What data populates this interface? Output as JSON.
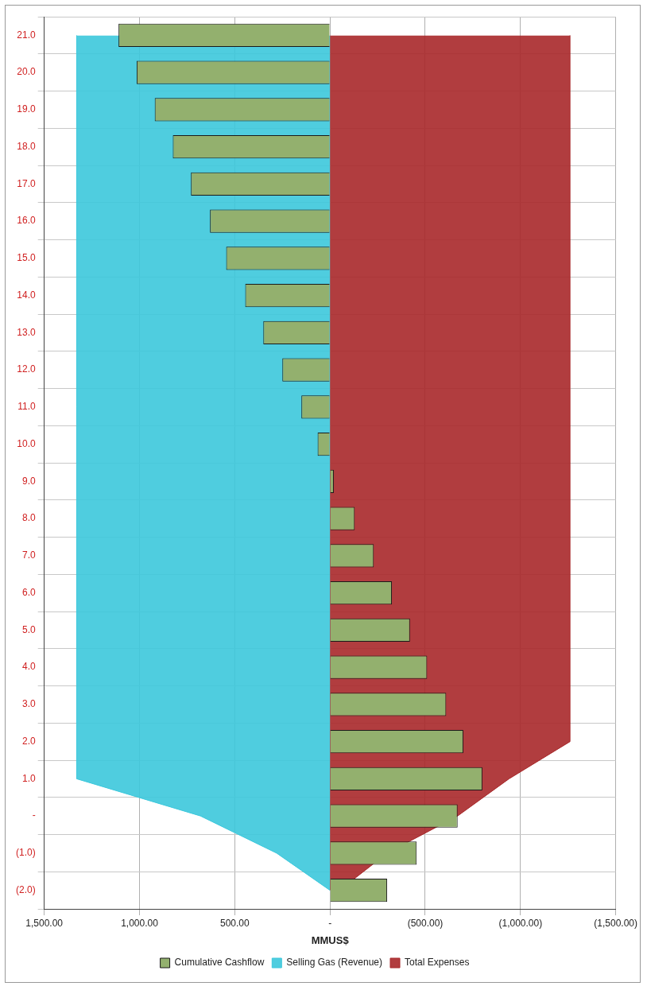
{
  "chart_data": {
    "type": "bar",
    "orientation": "horizontal",
    "x_label": "MMUS$",
    "categories": [
      "(2.0)",
      "(1.0)",
      "-",
      "1.0",
      "2.0",
      "3.0",
      "4.0",
      "5.0",
      "6.0",
      "7.0",
      "8.0",
      "9.0",
      "10.0",
      "11.0",
      "12.0",
      "13.0",
      "14.0",
      "15.0",
      "16.0",
      "17.0",
      "18.0",
      "19.0",
      "20.0",
      "21.0"
    ],
    "series": [
      {
        "name": "Selling Gas (Revenue)",
        "type": "area",
        "color": "#3cc8dc",
        "values": [
          0,
          280,
          680,
          1330,
          1330,
          1330,
          1330,
          1330,
          1330,
          1330,
          1330,
          1330,
          1330,
          1330,
          1330,
          1330,
          1330,
          1330,
          1330,
          1330,
          1330,
          1330,
          1330,
          1330
        ]
      },
      {
        "name": "Total Expenses",
        "type": "area",
        "color": "#a8282a",
        "values": [
          -50,
          -300,
          -670,
          -940,
          -1260,
          -1260,
          -1260,
          -1260,
          -1260,
          -1260,
          -1260,
          -1260,
          -1260,
          -1260,
          -1260,
          -1260,
          -1260,
          -1260,
          -1260,
          -1260,
          -1260,
          -1260,
          -1260,
          -1260
        ]
      },
      {
        "name": "Cumulative Cashflow",
        "type": "bar",
        "color": "#93b06e",
        "values": [
          -300,
          -455,
          -670,
          -800,
          -700,
          -610,
          -510,
          -420,
          -325,
          -230,
          -130,
          -20,
          65,
          150,
          250,
          350,
          445,
          545,
          630,
          730,
          825,
          920,
          1015,
          1110
        ]
      }
    ],
    "xlim": [
      1500,
      -1500
    ],
    "xticks": [
      {
        "value": 1500,
        "label": "1,500.00"
      },
      {
        "value": 1000,
        "label": "1,000.00"
      },
      {
        "value": 500,
        "label": "500.00"
      },
      {
        "value": 0,
        "label": "-"
      },
      {
        "value": -500,
        "label": "(500.00)"
      },
      {
        "value": -1000,
        "label": "(1,000.00)"
      },
      {
        "value": -1500,
        "label": "(1,500.00)"
      }
    ],
    "grid": true,
    "legend": "bottom"
  }
}
